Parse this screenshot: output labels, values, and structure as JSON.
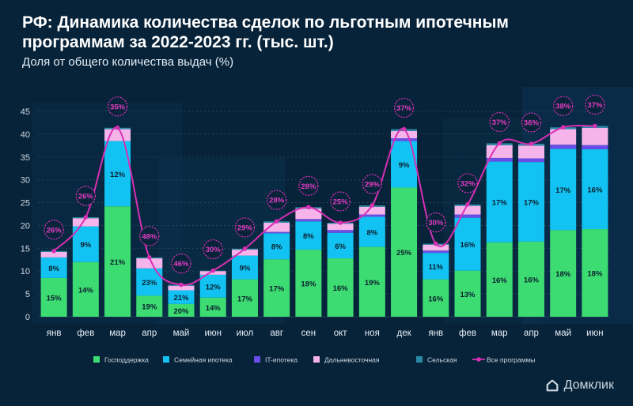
{
  "header": {
    "title_line1": "РФ: Динамика количества сделок по льготным ипотечным",
    "title_line2": "программам за 2022-2023 гг. (тыс. шт.)",
    "subtitle": "Доля от общего количества выдач (%)"
  },
  "brand": {
    "name": "Домклик",
    "icon": "house-logo-icon"
  },
  "colors": {
    "background": "#07233a",
    "gospodderzhka": "#3ddc72",
    "semeynaya": "#12c2f2",
    "it": "#6a4de6",
    "dalnevostochnaya": "#f5b5ea",
    "selskaya": "#2a8aa6",
    "line": "#d62fb3",
    "bubble_text": "#e63cc3"
  },
  "chart_data": {
    "type": "bar",
    "stacked": true,
    "categories": [
      "янв",
      "фев",
      "мар",
      "апр",
      "май",
      "июн",
      "июл",
      "авг",
      "сен",
      "окт",
      "ноя",
      "дек",
      "янв",
      "фев",
      "мар",
      "апр",
      "май",
      "июн"
    ],
    "ylim": [
      0,
      45
    ],
    "yticks": [
      0,
      5,
      10,
      15,
      20,
      25,
      30,
      35,
      40,
      45
    ],
    "grid": true,
    "legend_position": "bottom",
    "series": [
      {
        "name": "Господдержка",
        "color": "#3ddc72",
        "values": [
          8.5,
          12,
          24.2,
          4.6,
          2.8,
          4.2,
          8.2,
          12.6,
          14.7,
          12.8,
          15.3,
          28.3,
          8.2,
          10.1,
          16.3,
          16.5,
          19.0,
          19.2
        ],
        "labels": [
          "15%",
          "14%",
          "21%",
          "19%",
          "20%",
          "14%",
          "17%",
          "17%",
          "18%",
          "16%",
          "19%",
          "25%",
          "16%",
          "13%",
          "16%",
          "16%",
          "18%",
          "18%"
        ]
      },
      {
        "name": "Семейная ипотека",
        "color": "#12c2f2",
        "values": [
          4.5,
          7.8,
          14.3,
          6.0,
          3.0,
          5.0,
          5.2,
          5.7,
          6.2,
          5.6,
          6.6,
          10.2,
          5.8,
          11.6,
          17.7,
          17.4,
          17.8,
          17.5
        ],
        "labels": [
          "8%",
          "9%",
          "12%",
          "23%",
          "21%",
          "12%",
          "9%",
          "8%",
          "8%",
          "6%",
          "8%",
          "9%",
          "11%",
          "16%",
          "17%",
          "17%",
          "17%",
          "16%"
        ]
      },
      {
        "name": "IT-ипотека",
        "color": "#6a4de6",
        "values": [
          0,
          0,
          0,
          0,
          0,
          0,
          0,
          0.3,
          0.5,
          0.6,
          0.5,
          0.6,
          0.5,
          0.7,
          0.8,
          0.8,
          0.9,
          0.9
        ],
        "labels": []
      },
      {
        "name": "Дальневосточная",
        "color": "#f5b5ea",
        "values": [
          1.2,
          1.8,
          2.6,
          2.2,
          1.0,
          0.8,
          1.3,
          2.0,
          2.3,
          1.4,
          1.7,
          1.6,
          1.3,
          1.9,
          2.8,
          2.8,
          3.4,
          3.8
        ],
        "labels": []
      },
      {
        "name": "Сельская",
        "color": "#2a8aa6",
        "values": [
          0.2,
          0.2,
          0.3,
          0.2,
          0.2,
          0.1,
          0.2,
          0.3,
          0.3,
          0.2,
          0.3,
          0.4,
          0.2,
          0.3,
          0.4,
          0.4,
          0.4,
          0.4
        ],
        "labels": []
      },
      {
        "name": "Все программы",
        "type": "line",
        "color": "#d62fb3",
        "values": [
          26,
          26,
          35,
          48,
          46,
          30,
          29,
          28,
          28,
          25,
          29,
          37,
          30,
          32,
          37,
          36,
          38,
          37
        ],
        "labels": [
          "26%",
          "26%",
          "35%",
          "48%",
          "46%",
          "30%",
          "29%",
          "28%",
          "28%",
          "25%",
          "29%",
          "37%",
          "30%",
          "32%",
          "37%",
          "36%",
          "38%",
          "37%"
        ]
      }
    ]
  }
}
